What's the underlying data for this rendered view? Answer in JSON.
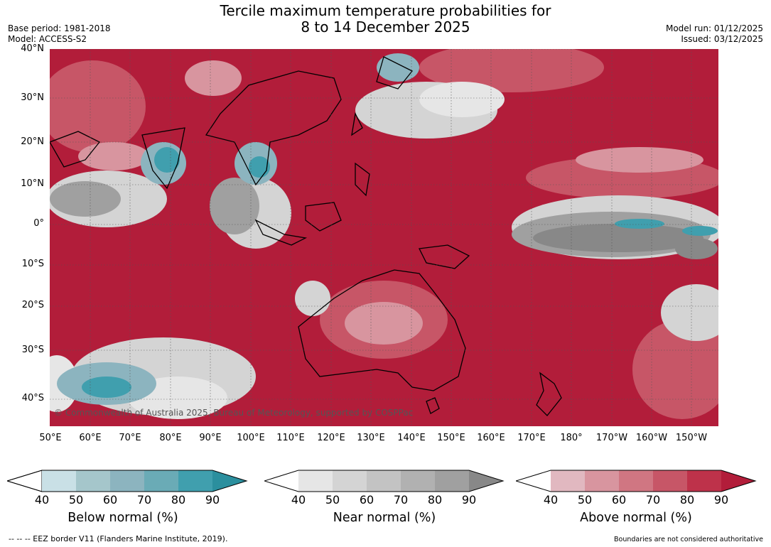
{
  "header": {
    "title_line1": "Tercile maximum temperature probabilities for",
    "title_line2": "8 to 14 December 2025",
    "base_period": "Base period: 1981-2018",
    "model": "Model: ACCESS-S2",
    "model_run": "Model run: 01/12/2025",
    "issued": "Issued: 03/12/2025"
  },
  "map": {
    "copyright": "© Commonwealth of Australia 2025, Bureau of Meteorology, supported by COSPPac",
    "lat_labels": [
      "40°N",
      "30°N",
      "20°N",
      "10°N",
      "0°",
      "10°S",
      "20°S",
      "30°S",
      "40°S"
    ],
    "lon_labels": [
      "50°E",
      "60°E",
      "70°E",
      "80°E",
      "90°E",
      "100°E",
      "110°E",
      "120°E",
      "130°E",
      "140°E",
      "150°E",
      "160°E",
      "170°E",
      "180°",
      "170°W",
      "160°W",
      "150°W"
    ],
    "categories": {
      "below": "Below normal (%)",
      "near": "Near normal (%)",
      "above": "Above normal (%)"
    },
    "colors": {
      "below": [
        "#c9e0e6",
        "#a5c6cb",
        "#8cb4bf",
        "#6aabb6",
        "#409fae",
        "#2b8f9e"
      ],
      "near": [
        "#e6e6e6",
        "#d4d4d4",
        "#c3c3c3",
        "#b1b1b1",
        "#a0a0a0",
        "#888888"
      ],
      "above": [
        "#e1b8c0",
        "#d8959f",
        "#d07682",
        "#c75667",
        "#be324a",
        "#b21d3a"
      ]
    }
  },
  "colorbars": [
    {
      "title": "Below normal (%)",
      "ticks": [
        "40",
        "50",
        "60",
        "70",
        "80",
        "90"
      ]
    },
    {
      "title": "Near normal (%)",
      "ticks": [
        "40",
        "50",
        "60",
        "70",
        "80",
        "90"
      ]
    },
    {
      "title": "Above normal (%)",
      "ticks": [
        "40",
        "50",
        "60",
        "70",
        "80",
        "90"
      ]
    }
  ],
  "footer": {
    "eez": "--  --  -- EEZ border V11 (Flanders Marine Institute, 2019).",
    "disclaimer": "Boundaries are not considered authoritative"
  }
}
